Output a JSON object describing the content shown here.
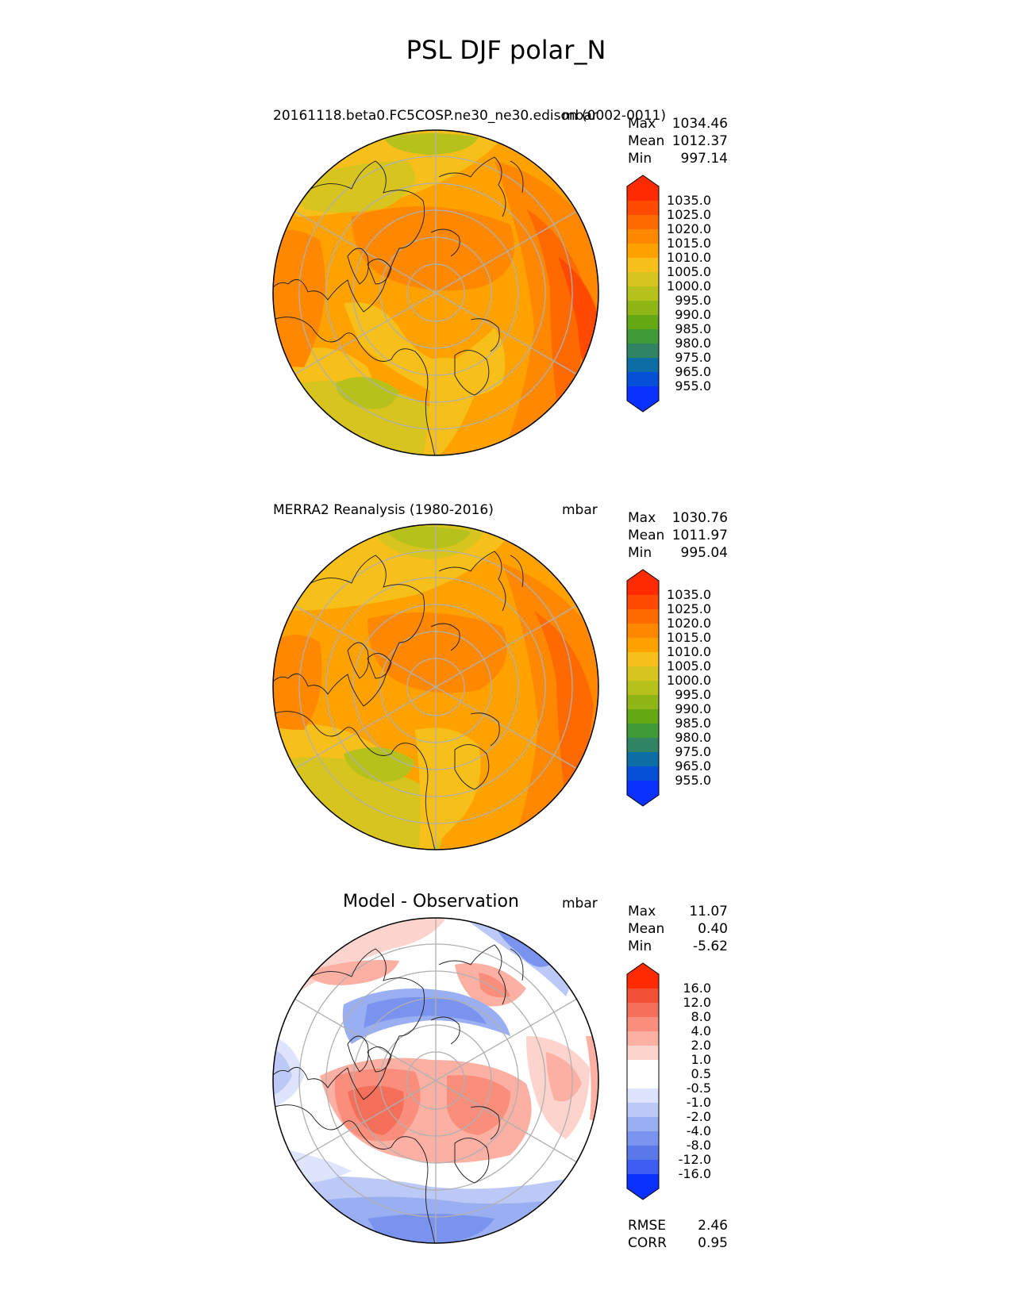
{
  "title": "PSL DJF polar_N",
  "panels": [
    {
      "left_title": "20161118.beta0.FC5COSP.ne30_ne30.edison (0002-0011)",
      "units": "mbar",
      "stats": [
        {
          "label": "Max",
          "value": "1034.46"
        },
        {
          "label": "Mean",
          "value": "1012.37"
        },
        {
          "label": "Min",
          "value": "997.14"
        }
      ],
      "colorbar_labels": [
        "1035.0",
        "1025.0",
        "1020.0",
        "1015.0",
        "1010.0",
        "1005.0",
        "1000.0",
        "995.0",
        "990.0",
        "985.0",
        "980.0",
        "975.0",
        "965.0",
        "955.0"
      ]
    },
    {
      "left_title": "MERRA2 Reanalysis (1980-2016)",
      "units": "mbar",
      "stats": [
        {
          "label": "Max",
          "value": "1030.76"
        },
        {
          "label": "Mean",
          "value": "1011.97"
        },
        {
          "label": "Min",
          "value": "995.04"
        }
      ],
      "colorbar_labels": [
        "1035.0",
        "1025.0",
        "1020.0",
        "1015.0",
        "1010.0",
        "1005.0",
        "1000.0",
        "995.0",
        "990.0",
        "985.0",
        "980.0",
        "975.0",
        "965.0",
        "955.0"
      ]
    },
    {
      "left_title": "Model - Observation",
      "units": "mbar",
      "stats": [
        {
          "label": "Max",
          "value": "11.07"
        },
        {
          "label": "Mean",
          "value": "0.40"
        },
        {
          "label": "Min",
          "value": "-5.62"
        }
      ],
      "colorbar_labels": [
        "16.0",
        "12.0",
        "8.0",
        "4.0",
        "2.0",
        "1.0",
        "0.5",
        "-0.5",
        "-1.0",
        "-2.0",
        "-4.0",
        "-8.0",
        "-12.0",
        "-16.0"
      ],
      "metrics": [
        {
          "label": "RMSE",
          "value": "2.46"
        },
        {
          "label": "CORR",
          "value": "0.95"
        }
      ]
    }
  ],
  "colors": {
    "abs_scale": [
      "#ff2a00",
      "#ff4a00",
      "#ff6a00",
      "#ff8800",
      "#ffa200",
      "#f7bf1a",
      "#d7c41e",
      "#b7c11b",
      "#8fb517",
      "#64a914",
      "#3f9a38",
      "#2f8463",
      "#0d6ea3",
      "#0550d6",
      "#0a30ff"
    ],
    "diff_scale": [
      "#ff2a00",
      "#f25035",
      "#f66f5a",
      "#fa8e7d",
      "#fcb0a4",
      "#fdd4cd",
      "#ffffff",
      "#dde4fb",
      "#bcc9f6",
      "#9aaef2",
      "#7a93ee",
      "#5b78ea",
      "#3c5df0",
      "#0a30ff"
    ]
  }
}
